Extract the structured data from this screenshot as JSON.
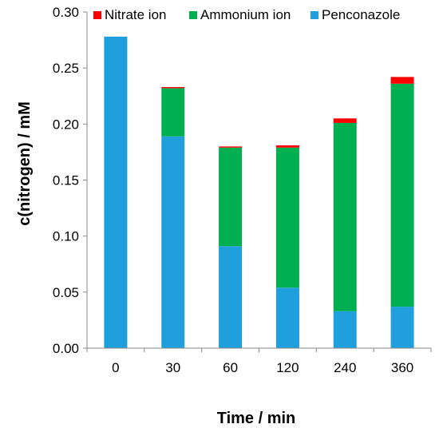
{
  "chart_data": {
    "type": "bar",
    "stacked": true,
    "categories": [
      "0",
      "30",
      "60",
      "120",
      "240",
      "360"
    ],
    "series": [
      {
        "name": "Penconazole",
        "color": "#1F9FDC",
        "values": [
          0.278,
          0.189,
          0.091,
          0.054,
          0.033,
          0.037
        ]
      },
      {
        "name": "Ammonium ion",
        "color": "#00B050",
        "values": [
          0.0,
          0.043,
          0.088,
          0.125,
          0.168,
          0.199
        ]
      },
      {
        "name": "Nitrate ion",
        "color": "#FF0000",
        "values": [
          0.0,
          0.001,
          0.001,
          0.002,
          0.004,
          0.006
        ]
      }
    ],
    "legend_order": [
      "Nitrate ion",
      "Ammonium ion",
      "Penconazole"
    ],
    "legend_position": "top",
    "xlabel": "Time / min",
    "ylabel": "c(nitrogen) / mM",
    "ylim": [
      0,
      0.3
    ],
    "yticks": [
      "0.00",
      "0.05",
      "0.10",
      "0.15",
      "0.20",
      "0.25",
      "0.30"
    ],
    "grid": false
  }
}
